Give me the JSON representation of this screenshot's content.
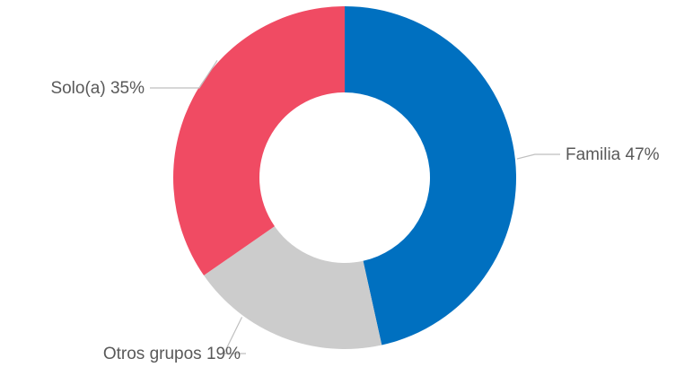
{
  "chart_data": {
    "type": "pie",
    "variant": "donut",
    "categories": [
      "Familia",
      "Otros grupos",
      "Solo(a)"
    ],
    "values": [
      47,
      19,
      35
    ],
    "labels": [
      "Familia 47%",
      "Otros grupos 19%",
      "Solo(a) 35%"
    ],
    "colors": [
      "#0070C0",
      "#CCCCCC",
      "#F04B63"
    ],
    "title": "",
    "legend": "none",
    "start": "top",
    "direction": "clockwise"
  }
}
